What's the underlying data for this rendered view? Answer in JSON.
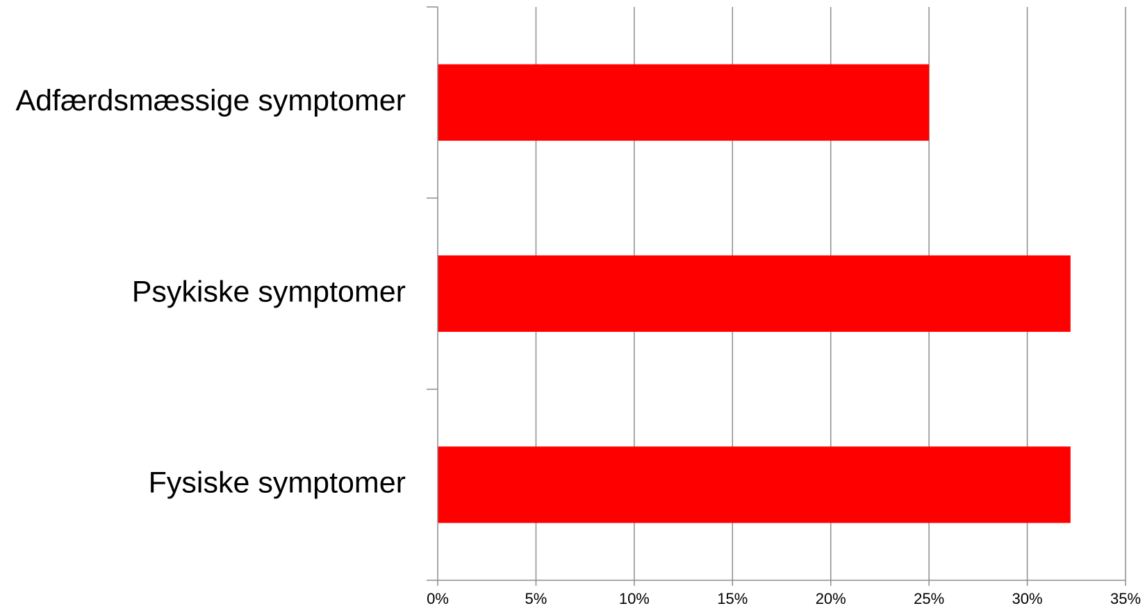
{
  "chart_data": {
    "type": "bar",
    "orientation": "horizontal",
    "categories": [
      "Adfærdsmæssige symptomer",
      "Psykiske symptomer",
      "Fysiske symptomer"
    ],
    "values": [
      25,
      32.2,
      32.2
    ],
    "xlim": [
      0,
      35
    ],
    "x_ticks": [
      0,
      5,
      10,
      15,
      20,
      25,
      30,
      35
    ],
    "x_tick_labels": [
      "0%",
      "5%",
      "10%",
      "15%",
      "20%",
      "25%",
      "30%",
      "35%"
    ],
    "title": "",
    "xlabel": "",
    "ylabel": "",
    "grid": "vertical",
    "legend": "none",
    "colors": {
      "bar": "#ff0000",
      "grid": "#8c8c8c",
      "axis": "#8c8c8c",
      "text": "#000000"
    }
  }
}
